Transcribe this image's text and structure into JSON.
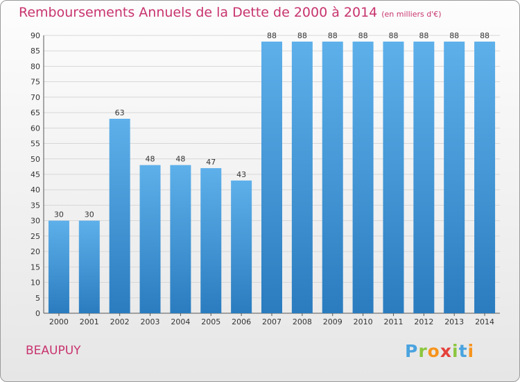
{
  "title": "Remboursements Annuels de la Dette de 2000 à 2014",
  "subtitle": "(en milliers d'€)",
  "place": "BEAUPUY",
  "logo": {
    "letters": [
      {
        "ch": "P",
        "color": "#4aa3df"
      },
      {
        "ch": "r",
        "color": "#8cc63f"
      },
      {
        "ch": "o",
        "color": "#f7941d"
      },
      {
        "ch": "x",
        "color": "#e5403a"
      },
      {
        "ch": "i",
        "color": "#8cc63f"
      },
      {
        "ch": "t",
        "color": "#4aa3df"
      },
      {
        "ch": "i",
        "color": "#f7941d"
      }
    ]
  },
  "colors": {
    "bar_light": "#5eb0ea",
    "bar_dark": "#2a7cbf",
    "title": "#c8336e"
  },
  "chart_data": {
    "type": "bar",
    "categories": [
      "2000",
      "2001",
      "2002",
      "2003",
      "2004",
      "2005",
      "2006",
      "2007",
      "2008",
      "2009",
      "2010",
      "2011",
      "2012",
      "2013",
      "2014"
    ],
    "values": [
      30,
      30,
      63,
      48,
      48,
      47,
      43,
      88,
      88,
      88,
      88,
      88,
      88,
      88,
      88
    ],
    "yticks": [
      0,
      5,
      10,
      15,
      20,
      25,
      30,
      35,
      40,
      45,
      50,
      55,
      60,
      65,
      70,
      75,
      80,
      85,
      90
    ],
    "ylim": [
      0,
      90
    ],
    "grid": true
  }
}
